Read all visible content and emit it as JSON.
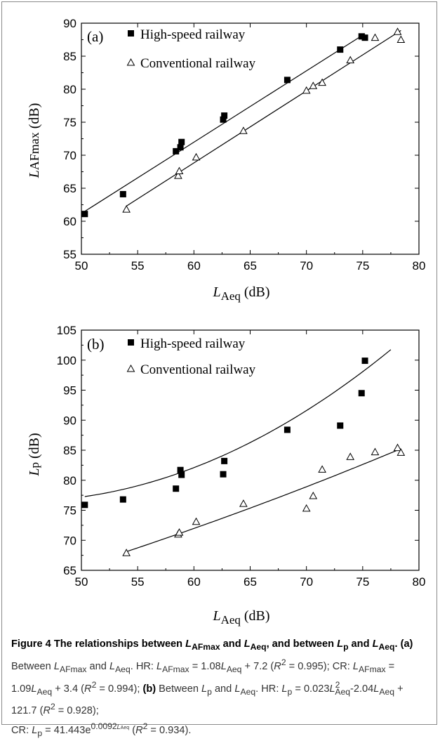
{
  "charts": [
    {
      "panel_label": "(a)",
      "ylabel_symbol": "L",
      "ylabel_sub": "AFmax",
      "ylabel_unit": "(dB)",
      "xlabel_symbol": "L",
      "xlabel_sub": "Aeq",
      "xlabel_unit": "(dB)",
      "legend": [
        "High-speed railway",
        "Conventional railway"
      ]
    },
    {
      "panel_label": "(b)",
      "ylabel_symbol": "L",
      "ylabel_sub": "p",
      "ylabel_unit": "(dB)",
      "xlabel_symbol": "L",
      "xlabel_sub": "Aeq",
      "xlabel_unit": "(dB)",
      "legend": [
        "High-speed railway",
        "Conventional railway"
      ]
    }
  ],
  "chart_data": [
    {
      "type": "scatter",
      "title": "",
      "xlabel": "L Aeq (dB)",
      "ylabel": "L AFmax (dB)",
      "xlim": [
        50,
        80
      ],
      "ylim": [
        55,
        90
      ],
      "xticks": [
        50,
        55,
        60,
        65,
        70,
        75,
        80
      ],
      "yticks": [
        55,
        60,
        65,
        70,
        75,
        80,
        85,
        90
      ],
      "legend_position": "top-left",
      "series": [
        {
          "name": "High-speed railway",
          "marker": "filled-square",
          "color": "#000000",
          "points": [
            [
              50.3,
              61.1
            ],
            [
              53.7,
              64.1
            ],
            [
              58.4,
              70.6
            ],
            [
              58.8,
              71.2
            ],
            [
              58.9,
              72.0
            ],
            [
              62.6,
              75.4
            ],
            [
              62.7,
              76.0
            ],
            [
              68.3,
              81.4
            ],
            [
              73.0,
              86.0
            ],
            [
              74.9,
              88.0
            ],
            [
              75.2,
              87.8
            ]
          ],
          "fit_line": [
            [
              50.3,
              61.5
            ],
            [
              75.2,
              88.4
            ]
          ]
        },
        {
          "name": "Conventional railway",
          "marker": "open-triangle",
          "color": "#000000",
          "points": [
            [
              54.0,
              61.8
            ],
            [
              58.6,
              66.9
            ],
            [
              58.7,
              67.6
            ],
            [
              60.2,
              69.7
            ],
            [
              64.4,
              73.7
            ],
            [
              70.0,
              79.8
            ],
            [
              70.6,
              80.5
            ],
            [
              71.4,
              81.0
            ],
            [
              73.9,
              84.4
            ],
            [
              76.1,
              87.8
            ],
            [
              78.1,
              88.7
            ],
            [
              78.4,
              87.5
            ]
          ],
          "fit_line": [
            [
              54.0,
              62.3
            ],
            [
              78.4,
              88.9
            ]
          ]
        }
      ]
    },
    {
      "type": "scatter",
      "title": "",
      "xlabel": "L Aeq (dB)",
      "ylabel": "L p (dB)",
      "xlim": [
        50,
        80
      ],
      "ylim": [
        65,
        105
      ],
      "xticks": [
        50,
        55,
        60,
        65,
        70,
        75,
        80
      ],
      "yticks": [
        65,
        70,
        75,
        80,
        85,
        90,
        95,
        100,
        105
      ],
      "legend_position": "top-left",
      "series": [
        {
          "name": "High-speed railway",
          "marker": "filled-square",
          "color": "#000000",
          "points": [
            [
              50.3,
              75.9
            ],
            [
              53.7,
              76.8
            ],
            [
              58.4,
              78.6
            ],
            [
              58.8,
              81.7
            ],
            [
              58.9,
              80.9
            ],
            [
              62.6,
              81.0
            ],
            [
              62.7,
              83.2
            ],
            [
              68.3,
              88.4
            ],
            [
              73.0,
              89.1
            ],
            [
              74.9,
              94.5
            ],
            [
              75.2,
              99.9
            ]
          ],
          "fit_curve": {
            "type": "quadratic",
            "a": 0.023,
            "b": -2.04,
            "c": 121.7,
            "x_range": [
              50.3,
              77.5
            ]
          }
        },
        {
          "name": "Conventional railway",
          "marker": "open-triangle",
          "color": "#000000",
          "points": [
            [
              54.0,
              67.9
            ],
            [
              58.6,
              71.0
            ],
            [
              58.7,
              71.3
            ],
            [
              60.2,
              73.1
            ],
            [
              64.4,
              76.1
            ],
            [
              70.0,
              75.3
            ],
            [
              70.6,
              77.4
            ],
            [
              71.4,
              81.8
            ],
            [
              73.9,
              83.9
            ],
            [
              76.1,
              84.7
            ],
            [
              78.1,
              85.4
            ],
            [
              78.4,
              84.6
            ]
          ],
          "fit_curve": {
            "type": "exponential",
            "a": 41.443,
            "b": 0.0092,
            "x_range": [
              54.0,
              78.4
            ]
          }
        }
      ]
    }
  ],
  "caption": {
    "heading_prefix": "Figure 4 The relationships between ",
    "heading_mid1": " and ",
    "heading_mid2": ", and between ",
    "heading_mid3": " and ",
    "heading_end": ".",
    "sym_L": "L",
    "sub_AFmax": "AFmax",
    "sub_Aeq": "Aeq",
    "sub_p": "p",
    "label_a": "(a)",
    "label_b": "(b)",
    "a_text1": " Between ",
    "a_text2": " and ",
    "a_text3": ". HR: ",
    "a_eq1": " = 1.08",
    "a_eq1b": " + 7.2 (",
    "R": "R",
    "sq": "2",
    "r2_a_hr": " = 0.995); CR: ",
    "a_eq2": " = 1.09",
    "a_eq2b": " + 3.4 (",
    "r2_a_cr": " = 0.994); ",
    "b_text1": " Between ",
    "b_text2": " and ",
    "b_text3": ". HR: ",
    "b_eq1": " = 0.023",
    "b_eq1b": "-2.04",
    "b_eq1c": " + 121.7 (",
    "r2_b_hr": " = 0.928);",
    "b_cr": "CR: ",
    "b_eq2": " = 41.443e",
    "b_exp": "0.0092",
    "b_eq2b": " (",
    "r2_b_cr": " = 0.934)."
  }
}
